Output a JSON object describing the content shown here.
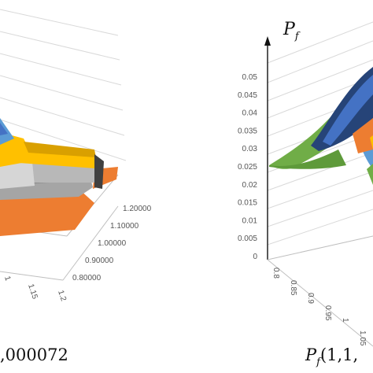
{
  "chart_data": [
    {
      "type": "surface",
      "x_ticks": [
        "1",
        "1.15",
        "1.2"
      ],
      "y_ticks": [
        "0.80000",
        "0.90000",
        "1.00000",
        "1.10000",
        "1.20000"
      ],
      "caption": ",000072",
      "colors": [
        "#ed7d31",
        "#a5a5a5",
        "#ffc000",
        "#5b9bd5",
        "#4472c4",
        "#70ad47"
      ]
    },
    {
      "type": "surface",
      "z_label": "P",
      "z_label_sub": "f",
      "z_ticks": [
        "0",
        "0.005",
        "0.01",
        "0.015",
        "0.02",
        "0.025",
        "0.03",
        "0.035",
        "0.04",
        "0.045",
        "0.05"
      ],
      "x_ticks": [
        "0.8",
        "0.85",
        "0.9",
        "0.95",
        "1",
        "1.05"
      ],
      "caption_main": "P",
      "caption_sub": "f",
      "caption_args": "(1,1,",
      "colors": [
        "#70ad47",
        "#4472c4",
        "#264478",
        "#ed7d31",
        "#5b9bd5",
        "#ffc000"
      ]
    }
  ]
}
